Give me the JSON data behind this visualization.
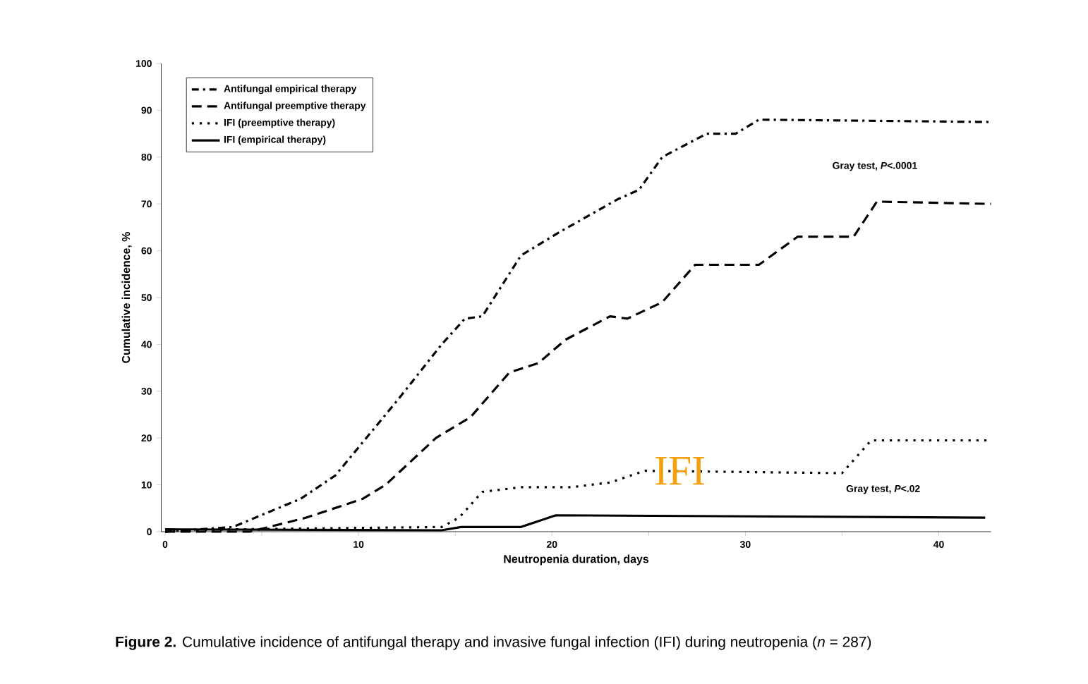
{
  "chart_data": {
    "type": "line",
    "xlabel": "Neutropenia duration, days",
    "ylabel": "Cumulative incidence, %",
    "xlim": [
      -0.2,
      42.7
    ],
    "ylim": [
      0,
      100
    ],
    "xticks": [
      0,
      {
        "value": 5,
        "label": null
      },
      10,
      {
        "value": 15,
        "label": null
      },
      20,
      {
        "value": 25,
        "label": null
      },
      30,
      {
        "value": 35,
        "label": null
      },
      40
    ],
    "yticks": [
      0,
      10,
      20,
      30,
      40,
      50,
      60,
      70,
      80,
      90,
      100
    ],
    "legend": "top left",
    "grid": false,
    "marker": "none",
    "series": [
      {
        "name": "Antifungal empirical therapy",
        "color": "#000000",
        "line_style": "dashdot",
        "x": [
          0,
          3.5,
          7,
          8.8,
          9.6,
          12,
          14.3,
          15.5,
          16.4,
          18.4,
          20.4,
          23.4,
          24.5,
          25.7,
          28,
          29.5,
          30.7,
          42.6
        ],
        "values": [
          0,
          1,
          7,
          12,
          16,
          28,
          40,
          45.5,
          46,
          59,
          64,
          71,
          73,
          80,
          85,
          85,
          88,
          87.5
        ]
      },
      {
        "name": "Antifungal preemptive therapy",
        "color": "#000000",
        "line_style": "dashed",
        "x": [
          0,
          4.4,
          7.3,
          10.2,
          11.4,
          14,
          15.8,
          17.8,
          19.3,
          20.7,
          23,
          23.9,
          25.7,
          27.4,
          30.7,
          32.7,
          35.6,
          36.8,
          42.7
        ],
        "values": [
          0,
          0,
          3,
          7,
          10,
          20,
          24.5,
          34,
          36,
          41,
          46,
          45.5,
          49,
          57,
          57,
          63,
          63,
          70.5,
          70
        ]
      },
      {
        "name": "IFI (preemptive therapy)",
        "color": "#000000",
        "line_style": "dotted",
        "x": [
          0,
          3.5,
          14.3,
          15.2,
          16.4,
          18.4,
          21,
          23,
          24.8,
          35,
          36.5,
          42.6
        ],
        "values": [
          0,
          0.5,
          1,
          3,
          8.5,
          9.5,
          9.5,
          10.5,
          13,
          12.5,
          19.5,
          19.5
        ]
      },
      {
        "name": "IFI (empirical therapy)",
        "color": "#000000",
        "line_style": "solid",
        "x": [
          0,
          14.3,
          15.3,
          18.4,
          20.2,
          42.4
        ],
        "values": [
          0.5,
          0.3,
          1,
          1,
          3.5,
          3
        ]
      }
    ],
    "annotations": [
      "Gray test, *P*<.0001",
      "Gray test, *P*<.02",
      "IFI",
      "**Figure 2.** Cumulative incidence of antifungal therapy and invasive fungal infection (IFI) during neutropenia (*n* = 287)"
    ]
  }
}
